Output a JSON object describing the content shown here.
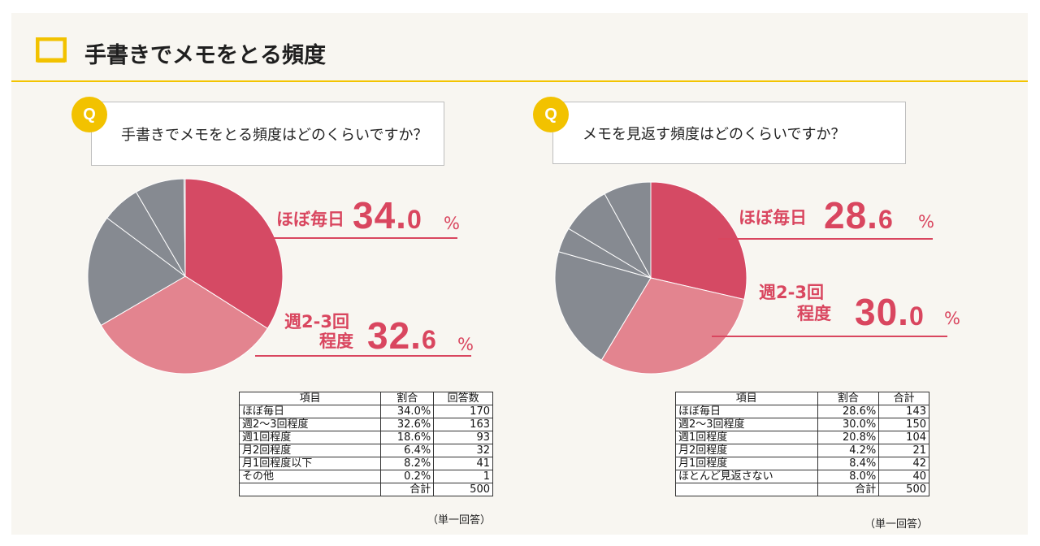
{
  "page": {
    "title": "手書きでメモをとる頻度",
    "accent_color": "#f3c400"
  },
  "left": {
    "q_badge": "Q",
    "question": "手書きでメモをとる頻度はどのくらいですか？",
    "highlight1": {
      "label": "ほぼ毎日",
      "int": "34.",
      "dec": "0",
      "unit": "%"
    },
    "highlight2": {
      "label_line1": "週2-3回",
      "label_line2": "程度",
      "int": "32.",
      "dec": "6",
      "unit": "%"
    },
    "table": {
      "headers": [
        "項目",
        "割合",
        "回答数"
      ],
      "rows": [
        [
          "ほぼ毎日",
          "34.0%",
          "170"
        ],
        [
          "週2～3回程度",
          "32.6%",
          "163"
        ],
        [
          "週1回程度",
          "18.6%",
          "93"
        ],
        [
          "月2回程度",
          "6.4%",
          "32"
        ],
        [
          "月1回程度以下",
          "8.2%",
          "41"
        ],
        [
          "その他",
          "0.2%",
          "1"
        ]
      ],
      "total_label": "合計",
      "total_value": "500"
    },
    "note": "（単一回答）"
  },
  "right": {
    "q_badge": "Q",
    "question": "メモを見返す頻度はどのくらいですか？",
    "highlight1": {
      "label": "ほぼ毎日",
      "int": "28.",
      "dec": "6",
      "unit": "%"
    },
    "highlight2": {
      "label_line1": "週2-3回",
      "label_line2": "程度",
      "int": "30.",
      "dec": "0",
      "unit": "%"
    },
    "table": {
      "headers": [
        "項目",
        "割合",
        "合計"
      ],
      "rows": [
        [
          "ほぼ毎日",
          "28.6%",
          "143"
        ],
        [
          "週2～3回程度",
          "30.0%",
          "150"
        ],
        [
          "週1回程度",
          "20.8%",
          "104"
        ],
        [
          "月2回程度",
          "4.2%",
          "21"
        ],
        [
          "月1回程度",
          "8.4%",
          "42"
        ],
        [
          "ほとんど見返さない",
          "8.0%",
          "40"
        ]
      ],
      "total_label": "合計",
      "total_value": "500"
    },
    "note": "（単一回答）"
  },
  "chart_data": [
    {
      "type": "pie",
      "title": "手書きでメモをとる頻度はどのくらいですか？",
      "categories": [
        "ほぼ毎日",
        "週2～3回程度",
        "週1回程度",
        "月2回程度",
        "月1回程度以下",
        "その他"
      ],
      "values": [
        34.0,
        32.6,
        18.6,
        6.4,
        8.2,
        0.2
      ],
      "colors": [
        "#d54a64",
        "#e3848f",
        "#868a91",
        "#868a91",
        "#868a91",
        "#868a91"
      ],
      "start": "12 o'clock",
      "direction": "clockwise"
    },
    {
      "type": "pie",
      "title": "メモを見返す頻度はどのくらいですか？",
      "categories": [
        "ほぼ毎日",
        "週2～3回程度",
        "週1回程度",
        "月2回程度",
        "月1回程度",
        "ほとんど見返さない"
      ],
      "values": [
        28.6,
        30.0,
        20.8,
        4.2,
        8.4,
        8.0
      ],
      "colors": [
        "#d54a64",
        "#e3848f",
        "#868a91",
        "#868a91",
        "#868a91",
        "#868a91"
      ],
      "start": "12 o'clock",
      "direction": "clockwise"
    }
  ]
}
